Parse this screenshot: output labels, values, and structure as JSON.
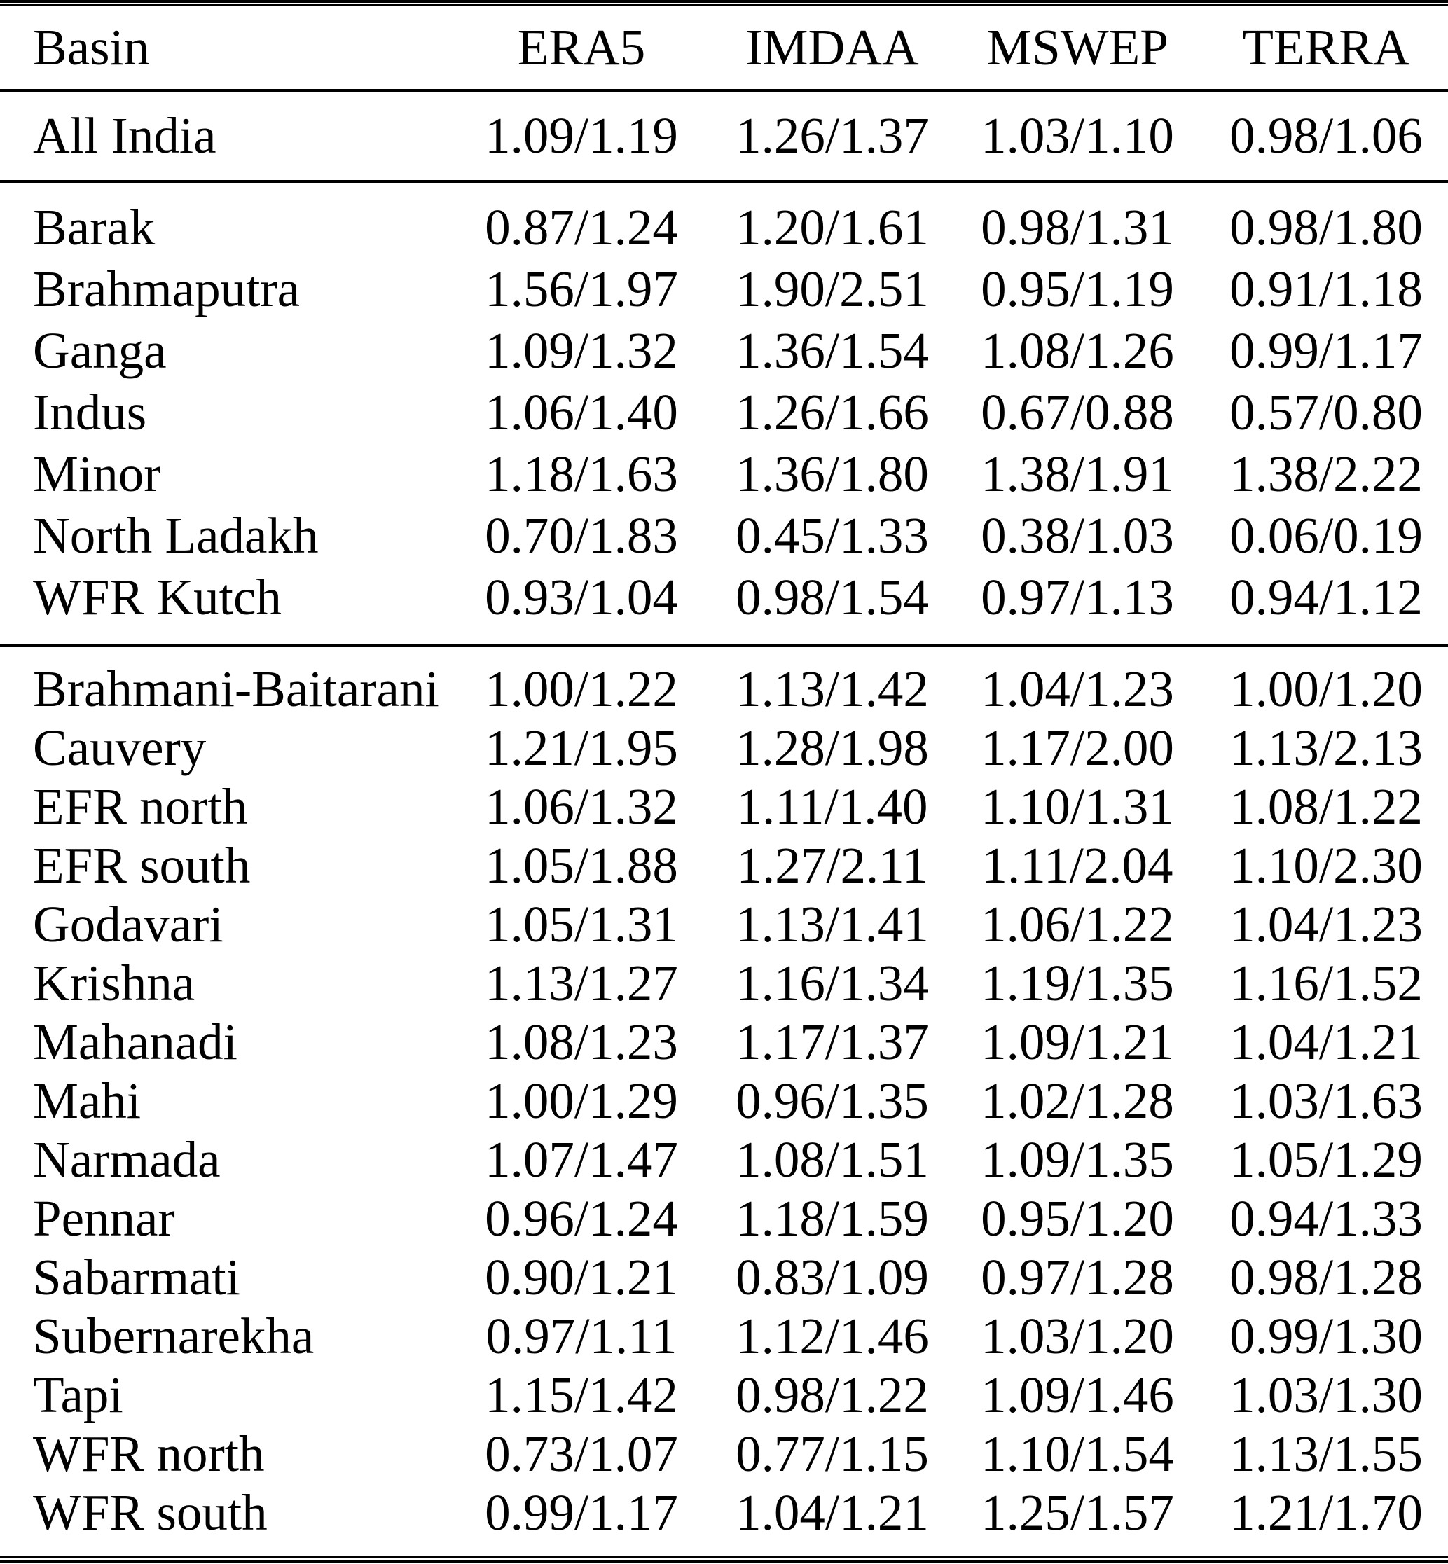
{
  "table": {
    "columns": [
      "Basin",
      "ERA5",
      "IMDAA",
      "MSWEP",
      "TERRA"
    ],
    "groups": [
      {
        "name": "all-india",
        "rows": [
          {
            "basin": "All India",
            "values": [
              "1.09/1.19",
              "1.26/1.37",
              "1.03/1.10",
              "0.98/1.06"
            ]
          }
        ]
      },
      {
        "name": "group-1",
        "rows": [
          {
            "basin": "Barak",
            "values": [
              "0.87/1.24",
              "1.20/1.61",
              "0.98/1.31",
              "0.98/1.80"
            ]
          },
          {
            "basin": "Brahmaputra",
            "values": [
              "1.56/1.97",
              "1.90/2.51",
              "0.95/1.19",
              "0.91/1.18"
            ]
          },
          {
            "basin": "Ganga",
            "values": [
              "1.09/1.32",
              "1.36/1.54",
              "1.08/1.26",
              "0.99/1.17"
            ]
          },
          {
            "basin": "Indus",
            "values": [
              "1.06/1.40",
              "1.26/1.66",
              "0.67/0.88",
              "0.57/0.80"
            ]
          },
          {
            "basin": "Minor",
            "values": [
              "1.18/1.63",
              "1.36/1.80",
              "1.38/1.91",
              "1.38/2.22"
            ]
          },
          {
            "basin": "North Ladakh",
            "values": [
              "0.70/1.83",
              "0.45/1.33",
              "0.38/1.03",
              "0.06/0.19"
            ]
          },
          {
            "basin": "WFR Kutch",
            "values": [
              "0.93/1.04",
              "0.98/1.54",
              "0.97/1.13",
              "0.94/1.12"
            ]
          }
        ]
      },
      {
        "name": "group-2",
        "rows": [
          {
            "basin": "Brahmani-Baitarani",
            "values": [
              "1.00/1.22",
              "1.13/1.42",
              "1.04/1.23",
              "1.00/1.20"
            ]
          },
          {
            "basin": "Cauvery",
            "values": [
              "1.21/1.95",
              "1.28/1.98",
              "1.17/2.00",
              "1.13/2.13"
            ]
          },
          {
            "basin": "EFR north",
            "values": [
              "1.06/1.32",
              "1.11/1.40",
              "1.10/1.31",
              "1.08/1.22"
            ]
          },
          {
            "basin": "EFR south",
            "values": [
              "1.05/1.88",
              "1.27/2.11",
              "1.11/2.04",
              "1.10/2.30"
            ]
          },
          {
            "basin": "Godavari",
            "values": [
              "1.05/1.31",
              "1.13/1.41",
              "1.06/1.22",
              "1.04/1.23"
            ]
          },
          {
            "basin": "Krishna",
            "values": [
              "1.13/1.27",
              "1.16/1.34",
              "1.19/1.35",
              "1.16/1.52"
            ]
          },
          {
            "basin": "Mahanadi",
            "values": [
              "1.08/1.23",
              "1.17/1.37",
              "1.09/1.21",
              "1.04/1.21"
            ]
          },
          {
            "basin": "Mahi",
            "values": [
              "1.00/1.29",
              "0.96/1.35",
              "1.02/1.28",
              "1.03/1.63"
            ]
          },
          {
            "basin": "Narmada",
            "values": [
              "1.07/1.47",
              "1.08/1.51",
              "1.09/1.35",
              "1.05/1.29"
            ]
          },
          {
            "basin": "Pennar",
            "values": [
              "0.96/1.24",
              "1.18/1.59",
              "0.95/1.20",
              "0.94/1.33"
            ]
          },
          {
            "basin": "Sabarmati",
            "values": [
              "0.90/1.21",
              "0.83/1.09",
              "0.97/1.28",
              "0.98/1.28"
            ]
          },
          {
            "basin": "Subernarekha",
            "values": [
              "0.97/1.11",
              "1.12/1.46",
              "1.03/1.20",
              "0.99/1.30"
            ]
          },
          {
            "basin": "Tapi",
            "values": [
              "1.15/1.42",
              "0.98/1.22",
              "1.09/1.46",
              "1.03/1.30"
            ]
          },
          {
            "basin": "WFR north",
            "values": [
              "0.73/1.07",
              "0.77/1.15",
              "1.10/1.54",
              "1.13/1.55"
            ]
          },
          {
            "basin": "WFR south",
            "values": [
              "0.99/1.17",
              "1.04/1.21",
              "1.25/1.57",
              "1.21/1.70"
            ]
          }
        ]
      }
    ]
  }
}
